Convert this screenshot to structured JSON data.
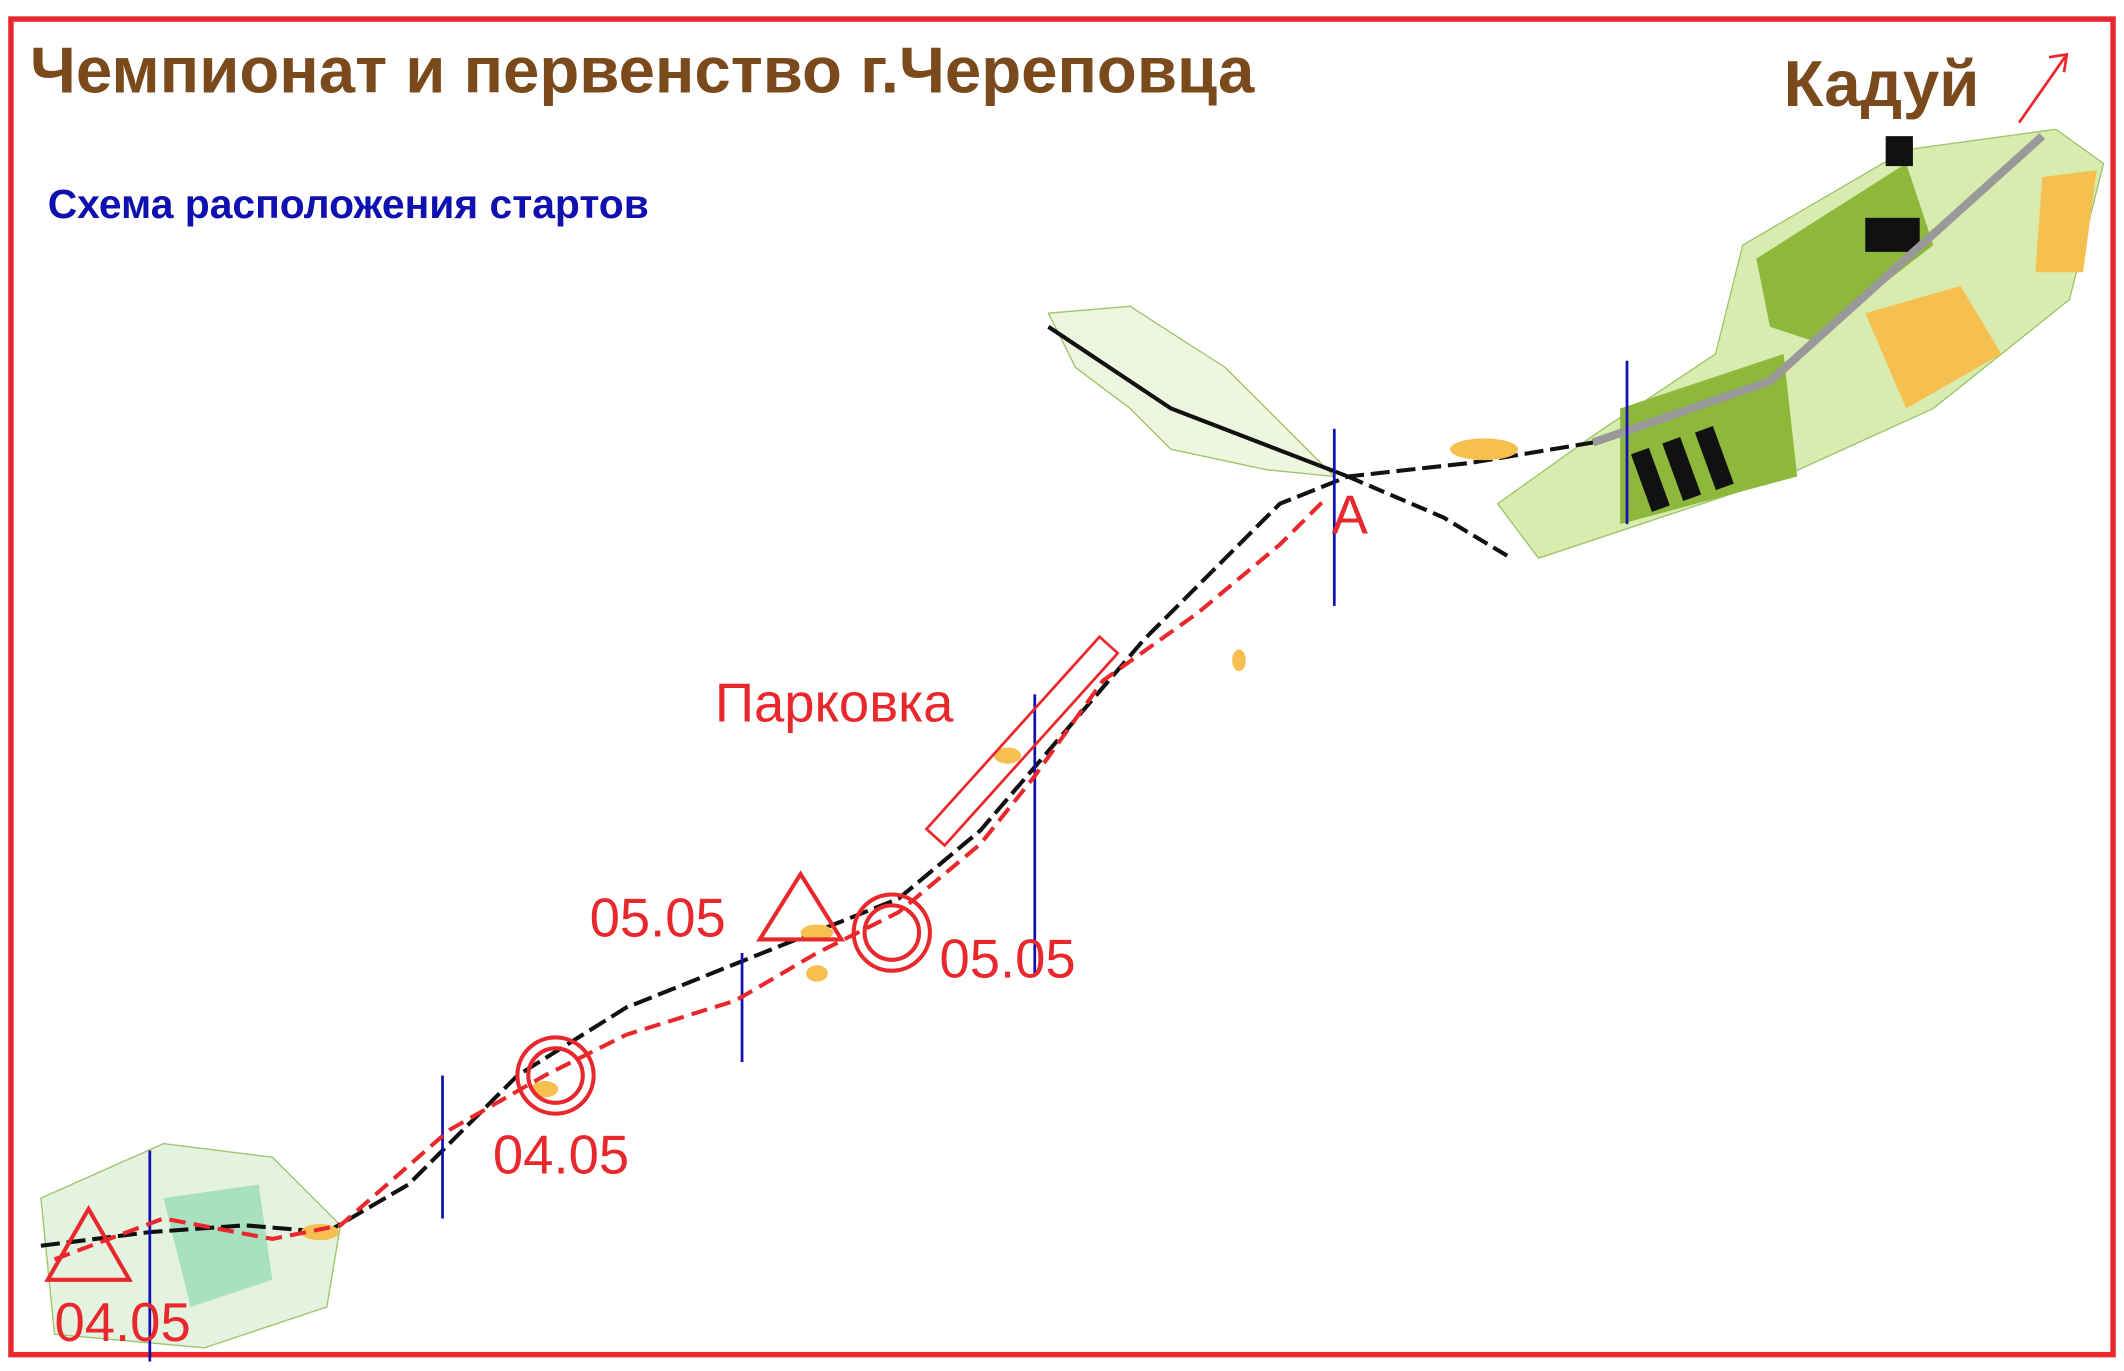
{
  "header": {
    "title": "Чемпионат и первенство г.Череповца",
    "subtitle": "Схема расположения стартов",
    "direction": "Кадуй"
  },
  "map": {
    "parking": "Парковка",
    "finish": "A",
    "labels": [
      "04.05",
      "04.05",
      "05.05",
      "05.05"
    ]
  }
}
